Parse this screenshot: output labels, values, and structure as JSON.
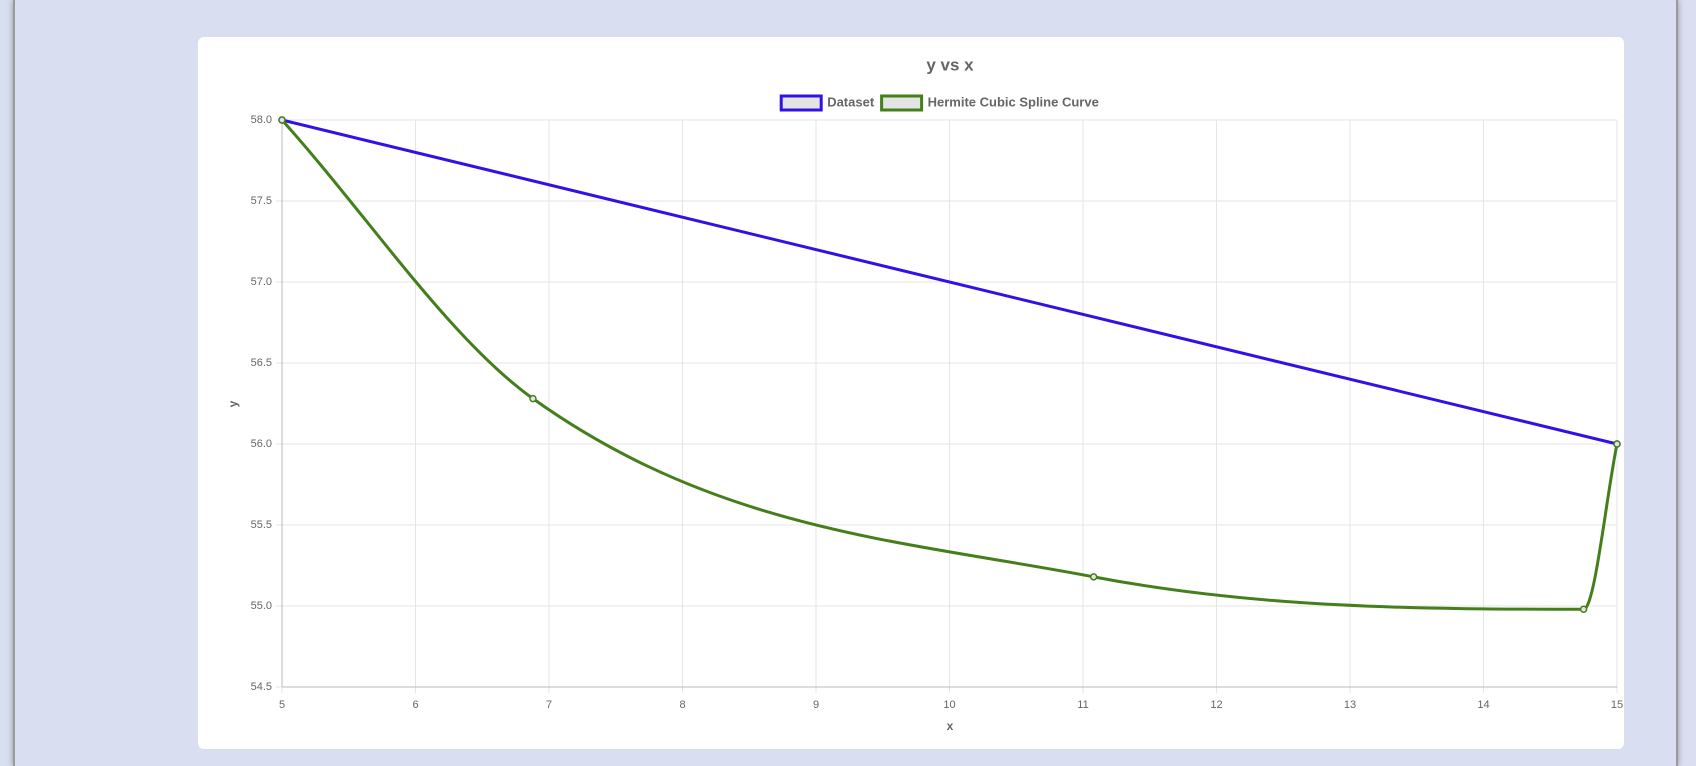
{
  "chart_data": {
    "type": "line",
    "title": "y vs x",
    "x_label": "x",
    "y_label": "y",
    "series": [
      {
        "name": "Dataset",
        "color": "#3311e6",
        "x": [
          5,
          15
        ],
        "values": [
          58,
          56
        ]
      },
      {
        "name": "Hermite Cubic Spline Curve",
        "color": "#457f1c",
        "x": [
          5,
          6.88,
          11.08,
          14.75,
          15
        ],
        "values": [
          58,
          56.28,
          55.18,
          54.98,
          56
        ]
      }
    ],
    "xlim": [
      5,
      15
    ],
    "xticks": [
      5,
      6,
      7,
      8,
      9,
      10,
      11,
      12,
      13,
      14,
      15
    ],
    "ylim": [
      54.5,
      58
    ],
    "yticks": [
      54.5,
      {
        "value": 55,
        "label": "55.0"
      },
      55.5,
      {
        "value": 56,
        "label": "56.0"
      },
      56.5,
      {
        "value": 57,
        "label": "57.0"
      },
      57.5,
      {
        "value": 58,
        "label": "58.0"
      }
    ],
    "grid": true,
    "legend": "top"
  }
}
